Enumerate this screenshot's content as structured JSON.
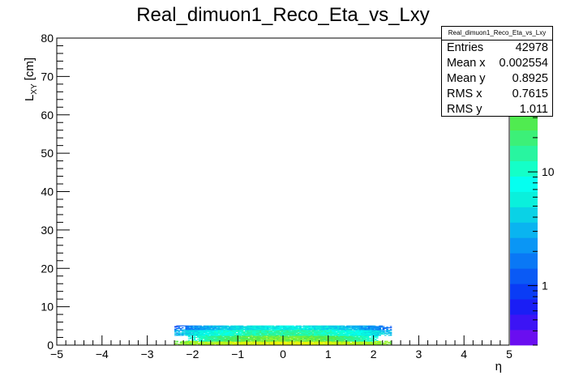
{
  "chart_data": {
    "type": "heatmap",
    "title": "Real_dimuon1_Reco_Eta_vs_Lxy",
    "xlabel": "η",
    "ylabel_main": "L",
    "ylabel_sub": "XY",
    "ylabel_unit": "[cm]",
    "xlim": [
      -5,
      5
    ],
    "ylim": [
      0,
      80
    ],
    "x_ticks": [
      "−5",
      "−4",
      "−3",
      "−2",
      "−1",
      "0",
      "1",
      "2",
      "3",
      "4",
      "5"
    ],
    "y_ticks": [
      "0",
      "10",
      "20",
      "30",
      "40",
      "50",
      "60",
      "70",
      "80"
    ],
    "z_scale": "log",
    "z_ticks": [
      "1",
      "10"
    ],
    "z_tick_values": [
      1,
      10
    ],
    "z_range": [
      0.3,
      150
    ],
    "palette": [
      "#6a0ef0",
      "#3c14f5",
      "#1a1ef5",
      "#0a3cf5",
      "#0a5af5",
      "#0a78f5",
      "#0a96f5",
      "#0ab4f0",
      "#0ad2e6",
      "#0af0dc",
      "#05fff0",
      "#14ffc8",
      "#28f5a0",
      "#3cf078",
      "#50eb50",
      "#78f03c",
      "#a0f528",
      "#c8f514",
      "#e6f50a",
      "#faf50a"
    ],
    "density": [
      {
        "eta_range": [
          -2.4,
          2.4
        ],
        "lxy_range": [
          0,
          1.0
        ],
        "level": "max"
      },
      {
        "eta_range": [
          -2.1,
          2.1
        ],
        "lxy_range": [
          1.0,
          2.5
        ],
        "level": "high"
      },
      {
        "eta_range": [
          -2.4,
          2.4
        ],
        "lxy_range": [
          2.5,
          4.0
        ],
        "level": "medium"
      },
      {
        "eta_range": [
          -2.4,
          2.4
        ],
        "lxy_range": [
          4.0,
          5.0
        ],
        "level": "low"
      }
    ],
    "stats": {
      "title": "Real_dimuon1_Reco_Eta_vs_Lxy",
      "rows": [
        {
          "label": "Entries",
          "value": "42978"
        },
        {
          "label": "Mean x",
          "value": "0.002554"
        },
        {
          "label": "Mean y",
          "value": "0.8925"
        },
        {
          "label": "RMS x",
          "value": "0.7615"
        },
        {
          "label": "RMS y",
          "value": "1.011"
        }
      ]
    }
  }
}
